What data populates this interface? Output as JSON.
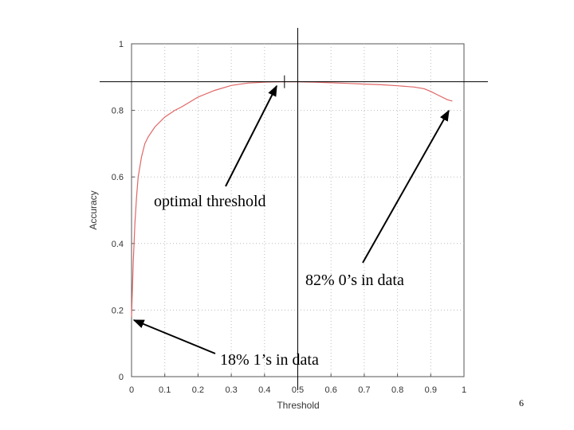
{
  "page_number": "6",
  "colors": {
    "curve": "#e06666",
    "grid": "#bbbbbb",
    "axis": "#555555",
    "annotation": "#000000"
  },
  "chart_data": {
    "type": "line",
    "title": "",
    "xlabel": "Threshold",
    "ylabel": "Accuracy",
    "xlim": [
      0,
      1
    ],
    "ylim": [
      0,
      1
    ],
    "grid": true,
    "x_ticks": [
      0,
      0.1,
      0.2,
      0.3,
      0.4,
      0.5,
      0.6,
      0.7,
      0.8,
      0.9,
      1
    ],
    "x_tick_labels": [
      "0",
      "0.1",
      "0.2",
      "0.3",
      "0.4",
      "0.5",
      "0.6",
      "0.7",
      "0.8",
      "0.9",
      "1"
    ],
    "y_ticks": [
      0,
      0.2,
      0.4,
      0.6,
      0.8,
      1
    ],
    "y_tick_labels": [
      "0",
      "0.2",
      "0.4",
      "0.6",
      "0.8",
      "1"
    ],
    "series": [
      {
        "name": "Accuracy",
        "x": [
          0.0,
          0.005,
          0.01,
          0.015,
          0.02,
          0.03,
          0.04,
          0.05,
          0.07,
          0.1,
          0.13,
          0.15,
          0.2,
          0.25,
          0.3,
          0.35,
          0.4,
          0.45,
          0.5,
          0.55,
          0.6,
          0.65,
          0.7,
          0.75,
          0.8,
          0.85,
          0.88,
          0.9,
          0.92,
          0.95,
          0.965
        ],
        "y": [
          0.18,
          0.34,
          0.46,
          0.54,
          0.6,
          0.66,
          0.7,
          0.72,
          0.75,
          0.78,
          0.8,
          0.81,
          0.84,
          0.86,
          0.875,
          0.882,
          0.885,
          0.886,
          0.886,
          0.885,
          0.883,
          0.881,
          0.879,
          0.877,
          0.874,
          0.87,
          0.865,
          0.857,
          0.847,
          0.832,
          0.828
        ]
      }
    ],
    "reference_lines": {
      "vertical_x": 0.5,
      "horizontal_y": 0.886
    },
    "optimum_marker_x": 0.46,
    "annotations": [
      {
        "text": "optimal threshold",
        "target": [
          0.44,
          0.883
        ]
      },
      {
        "text": "82% 0’s in data",
        "target": [
          0.965,
          0.83
        ]
      },
      {
        "text": "18% 1’s in data",
        "target": [
          0.0,
          0.175
        ]
      }
    ]
  }
}
